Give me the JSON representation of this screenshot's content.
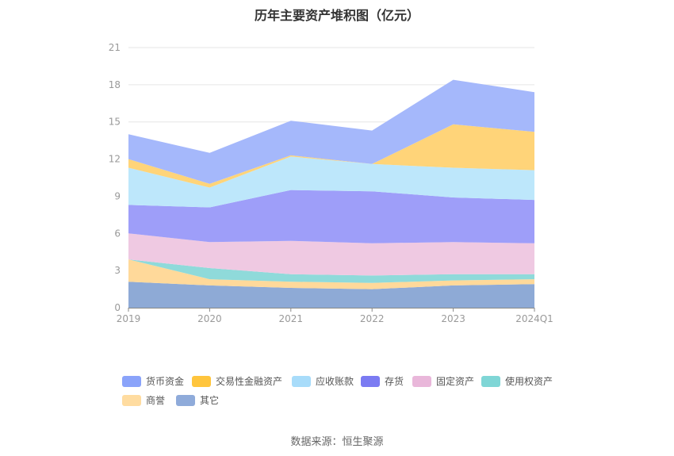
{
  "chart_data": {
    "type": "area",
    "stacked": true,
    "title": "历年主要资产堆积图（亿元）",
    "source": "数据来源：恒生聚源",
    "categories": [
      "2019",
      "2020",
      "2021",
      "2022",
      "2023",
      "2024Q1"
    ],
    "ylim": [
      0,
      21
    ],
    "yticks": [
      0,
      3,
      6,
      9,
      12,
      15,
      18,
      21
    ],
    "grid": true,
    "legend_position": "bottom",
    "series": [
      {
        "name": "其它",
        "color": "#8eaad6",
        "values": [
          2.1,
          1.8,
          1.6,
          1.5,
          1.8,
          1.9
        ]
      },
      {
        "name": "商誉",
        "color": "#ffd99a",
        "values": [
          1.8,
          0.5,
          0.5,
          0.5,
          0.4,
          0.4
        ]
      },
      {
        "name": "使用权资产",
        "color": "#8fdada",
        "values": [
          0.0,
          0.9,
          0.6,
          0.6,
          0.5,
          0.4
        ]
      },
      {
        "name": "固定资产",
        "color": "#efc9e2",
        "values": [
          2.1,
          2.1,
          2.7,
          2.6,
          2.6,
          2.5
        ]
      },
      {
        "name": "存货",
        "color": "#9e9ef9",
        "values": [
          2.3,
          2.8,
          4.1,
          4.2,
          3.6,
          3.5
        ]
      },
      {
        "name": "应收账款",
        "color": "#bde7fb",
        "values": [
          3.0,
          1.6,
          2.7,
          2.2,
          2.4,
          2.4
        ]
      },
      {
        "name": "交易性金融资产",
        "color": "#ffd479",
        "values": [
          0.7,
          0.3,
          0.1,
          0.0,
          3.5,
          3.1
        ]
      },
      {
        "name": "货币资金",
        "color": "#a5b8fb",
        "values": [
          2.0,
          2.5,
          2.8,
          2.7,
          3.6,
          3.2
        ]
      }
    ],
    "legend": [
      {
        "name": "货币资金",
        "color": "#8aa3fa"
      },
      {
        "name": "交易性金融资产",
        "color": "#ffc53d"
      },
      {
        "name": "应收账款",
        "color": "#a8dcfa"
      },
      {
        "name": "存货",
        "color": "#7b7bf2"
      },
      {
        "name": "固定资产",
        "color": "#e9b7da"
      },
      {
        "name": "使用权资产",
        "color": "#7fd6d6"
      },
      {
        "name": "商誉",
        "color": "#ffdca0"
      },
      {
        "name": "其它",
        "color": "#8fabda"
      }
    ]
  }
}
